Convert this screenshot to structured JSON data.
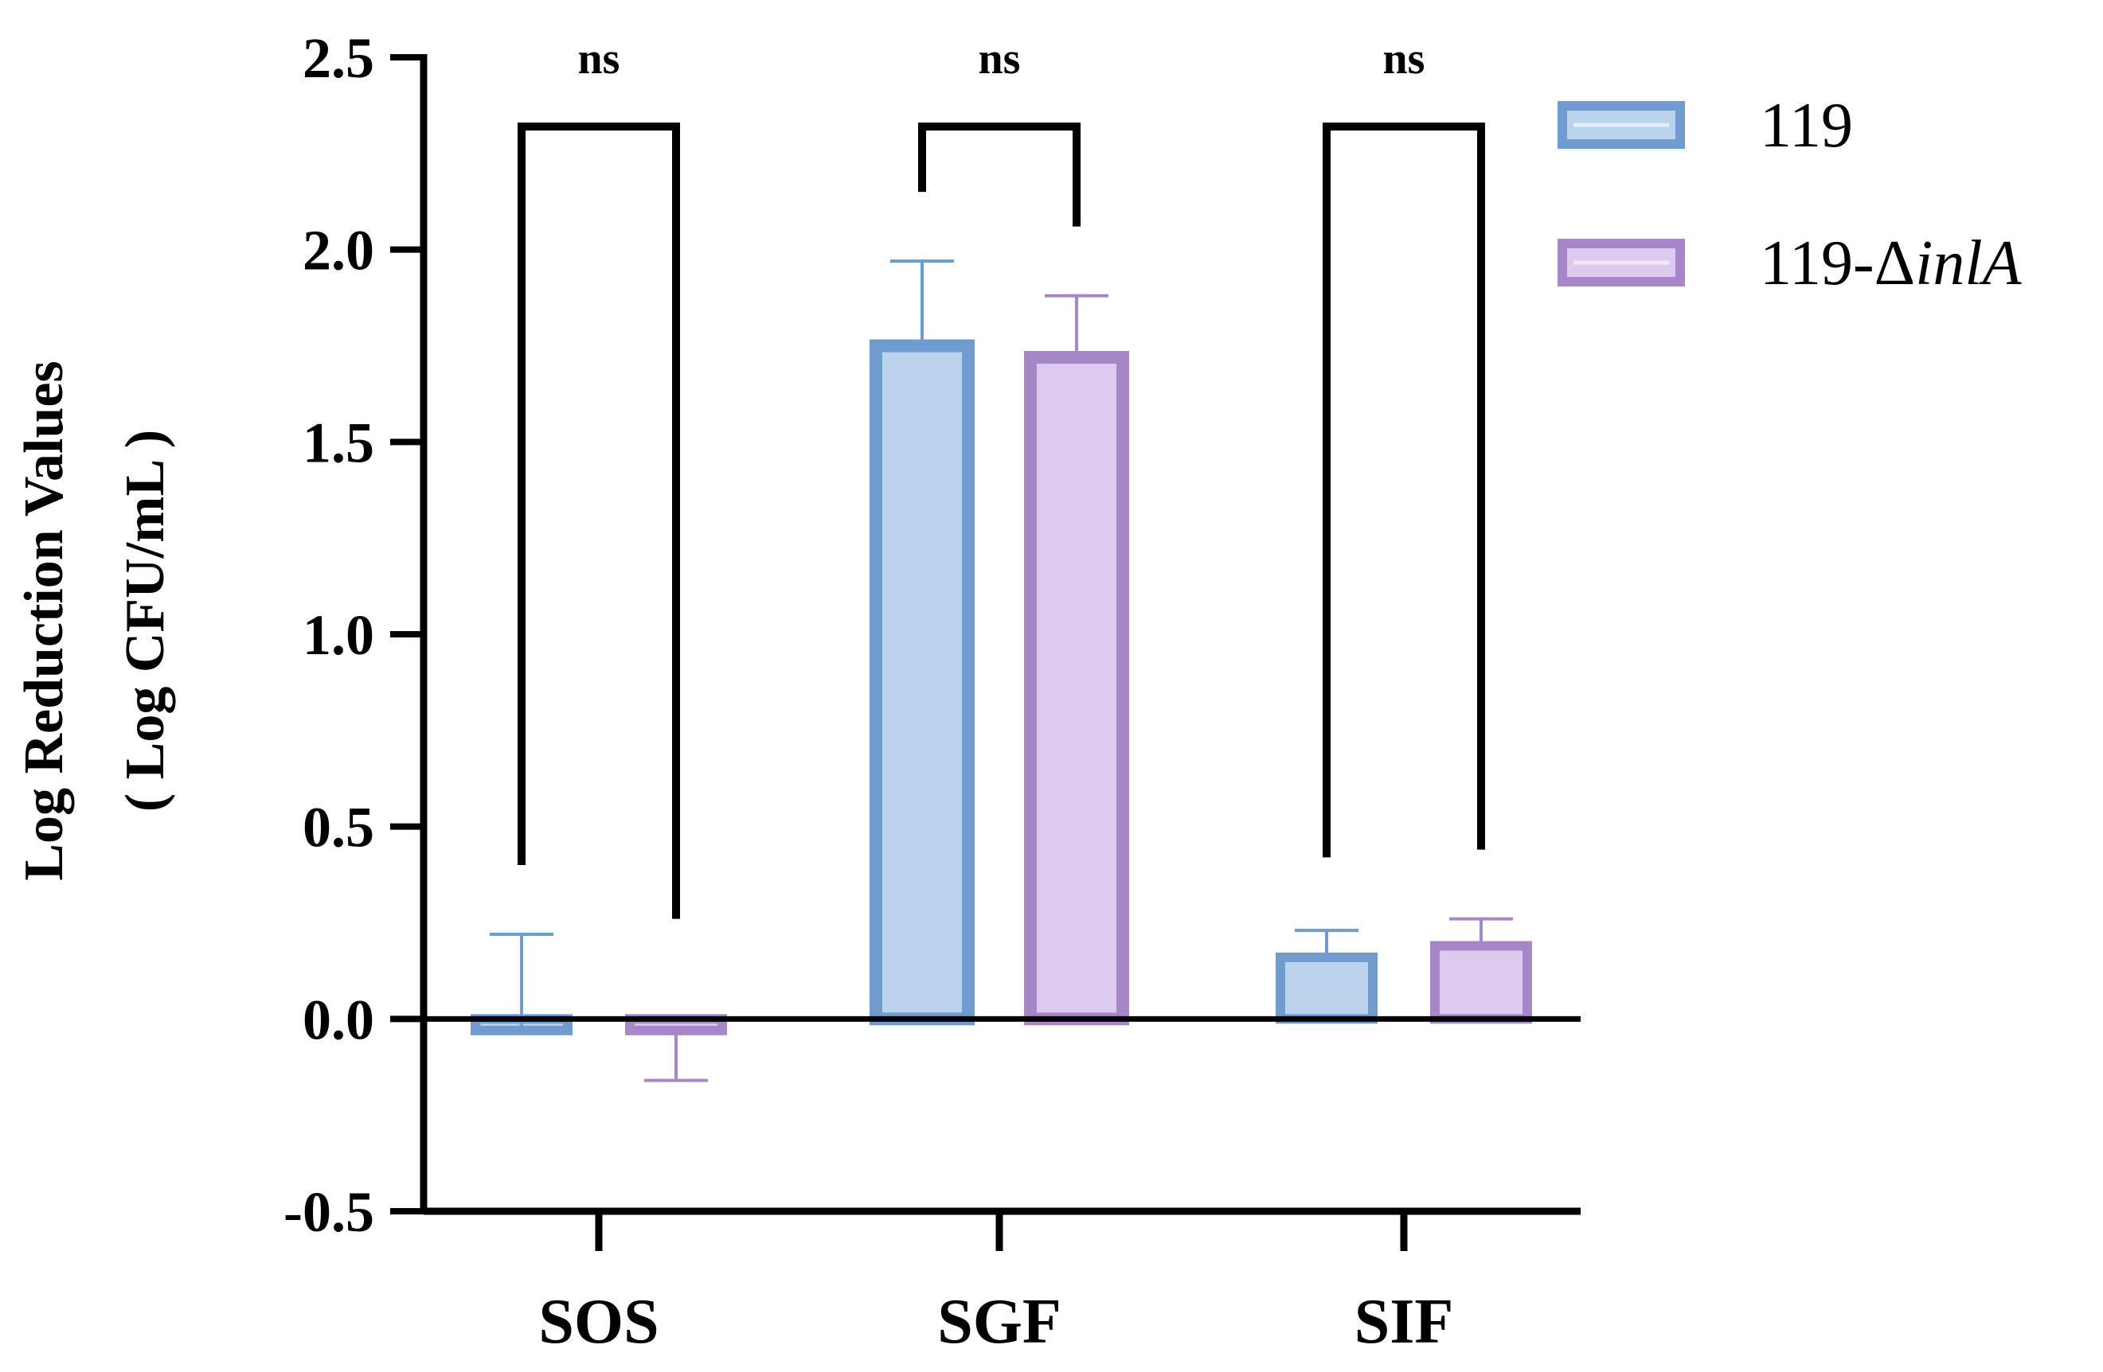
{
  "chart_data": {
    "type": "bar",
    "categories": [
      "SOS",
      "SGF",
      "SIF"
    ],
    "series": [
      {
        "name": "119",
        "values": [
          -0.03,
          1.75,
          0.16
        ],
        "errors": [
          0.25,
          0.22,
          0.07
        ],
        "error_direction": "up",
        "color": "#6f9bcf",
        "fill": "#bcd3ee"
      },
      {
        "name": "119-ΔinlA",
        "name_prefix": "119-Δ",
        "name_italic": "inlA",
        "values": [
          -0.03,
          1.72,
          0.19
        ],
        "errors": [
          0.13,
          0.16,
          0.07
        ],
        "error_direction": "mixed",
        "color": "#a887c8",
        "fill": "#dccaef"
      }
    ],
    "ylabel_line1": "Log Reduction Values",
    "ylabel_line2": "( Log CFU/mL )",
    "xlabel": "",
    "ylim": [
      -0.5,
      2.5
    ],
    "yticks": [
      "2.5",
      "2.0",
      "1.5",
      "1.0",
      "0.5",
      "0.0",
      "-0.5"
    ],
    "ytick_values": [
      2.5,
      2.0,
      1.5,
      1.0,
      0.5,
      0.0,
      -0.5
    ],
    "significance": [
      {
        "category": "SOS",
        "label": "ns",
        "bracket_top": 2.32,
        "left_end": 0.4,
        "right_end": 0.26
      },
      {
        "category": "SGF",
        "label": "ns",
        "bracket_top": 2.32,
        "left_end": 2.15,
        "right_end": 2.06
      },
      {
        "category": "SIF",
        "label": "ns",
        "bracket_top": 2.32,
        "left_end": 0.42,
        "right_end": 0.44
      }
    ],
    "legend_position": "top-right",
    "grid": false
  }
}
